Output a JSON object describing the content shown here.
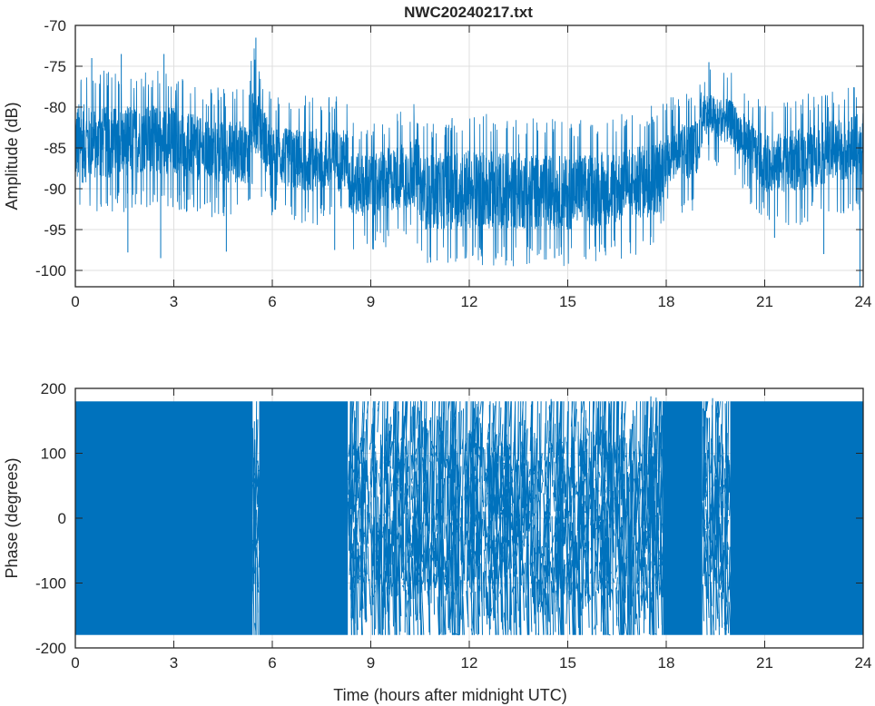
{
  "chart_data": [
    {
      "type": "line",
      "title": "NWC20240217.txt",
      "xlabel": "",
      "ylabel": "Amplitude (dB)",
      "xlim": [
        0,
        24
      ],
      "ylim": [
        -102,
        -70
      ],
      "xticks": [
        "0",
        "3",
        "6",
        "9",
        "12",
        "15",
        "18",
        "21",
        "24"
      ],
      "yticks": [
        "-70",
        "-75",
        "-80",
        "-85",
        "-90",
        "-95",
        "-100"
      ],
      "ytick_values": [
        -70,
        -75,
        -80,
        -85,
        -90,
        -95,
        -100
      ],
      "grid": true,
      "color": "#0072BD",
      "envelope": {
        "x": [
          0,
          0.5,
          2,
          3,
          4,
          5.3,
          5.4,
          5.6,
          6,
          7,
          8.3,
          8.35,
          9,
          10.4,
          10.6,
          12,
          15,
          17,
          17.8,
          18,
          19,
          19.05,
          20,
          21,
          22,
          24
        ],
        "upper": [
          -77,
          -78,
          -78,
          -78,
          -80,
          -80,
          -74,
          -77,
          -81,
          -81,
          -81,
          -84,
          -84,
          -82,
          -84,
          -83,
          -84,
          -83,
          -82,
          -81,
          -80,
          -77,
          -78,
          -82,
          -81,
          -79
        ],
        "lower": [
          -92,
          -91,
          -90,
          -90,
          -91,
          -91,
          -87,
          -88,
          -91,
          -92,
          -92,
          -95,
          -95,
          -94,
          -97,
          -97,
          -97,
          -96,
          -95,
          -91,
          -90,
          -84,
          -86,
          -92,
          -92,
          -90
        ]
      },
      "spikes": [
        [
          5.5,
          -71.5
        ],
        [
          1.4,
          -73.5
        ],
        [
          2.7,
          -73.5
        ],
        [
          0.5,
          -74
        ],
        [
          19.3,
          -74.5
        ],
        [
          4.6,
          -97.7
        ],
        [
          2.6,
          -98.5
        ],
        [
          7.9,
          -97.5
        ],
        [
          14.6,
          -98.5
        ],
        [
          23.9,
          -102
        ],
        [
          21.3,
          -96
        ],
        [
          22.8,
          -98
        ],
        [
          1.6,
          -97.8
        ]
      ]
    },
    {
      "type": "line",
      "title": "",
      "xlabel": "Time (hours after midnight UTC)",
      "ylabel": "Phase (degrees)",
      "xlim": [
        0,
        24
      ],
      "ylim": [
        -200,
        200
      ],
      "xticks": [
        "0",
        "3",
        "6",
        "9",
        "12",
        "15",
        "18",
        "21",
        "24"
      ],
      "yticks": [
        "200",
        "100",
        "0",
        "-100",
        "-200"
      ],
      "ytick_values": [
        200,
        100,
        0,
        -100,
        -200
      ],
      "grid": true,
      "color": "#0072BD",
      "wrap_range": [
        -180,
        180
      ],
      "dense_segments": [
        [
          0,
          5.4
        ],
        [
          5.6,
          8.3
        ],
        [
          17.9,
          19.1
        ],
        [
          19.95,
          24
        ]
      ],
      "sparse_segments": [
        [
          5.4,
          5.6
        ],
        [
          8.3,
          17.9
        ],
        [
          19.1,
          19.95
        ]
      ]
    }
  ]
}
